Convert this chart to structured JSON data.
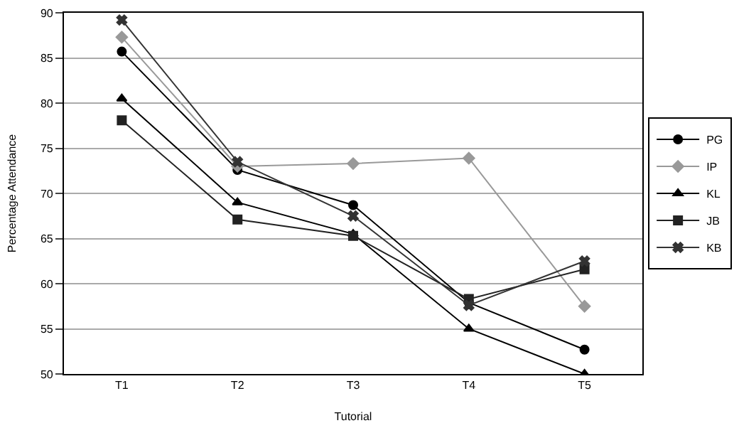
{
  "chart_data": {
    "type": "line",
    "xlabel": "Tutorial",
    "ylabel": "Percentage Attendance",
    "categories": [
      "T1",
      "T2",
      "T3",
      "T4",
      "T5"
    ],
    "ylim": [
      50,
      90
    ],
    "yticks": [
      50,
      55,
      60,
      65,
      70,
      75,
      80,
      85,
      90
    ],
    "grid": "y",
    "legend": "right",
    "series": [
      {
        "name": "PG",
        "color": "#000000",
        "marker": "circle",
        "values": [
          85.7,
          72.6,
          68.7,
          57.9,
          52.7
        ]
      },
      {
        "name": "IP",
        "color": "#999999",
        "marker": "diamond",
        "values": [
          87.3,
          73.0,
          73.3,
          73.9,
          57.5
        ]
      },
      {
        "name": "KL",
        "color": "#000000",
        "marker": "triangle",
        "values": [
          80.5,
          69.0,
          65.5,
          55.0,
          50.0
        ]
      },
      {
        "name": "JB",
        "color": "#222222",
        "marker": "square",
        "values": [
          78.1,
          67.1,
          65.3,
          58.3,
          61.6
        ]
      },
      {
        "name": "KB",
        "color": "#333333",
        "marker": "cross",
        "values": [
          89.2,
          73.5,
          67.5,
          57.6,
          62.5
        ]
      }
    ]
  }
}
